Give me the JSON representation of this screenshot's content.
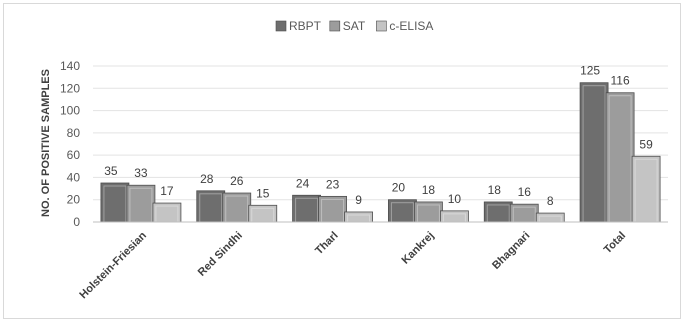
{
  "chart_data": {
    "type": "bar",
    "title": "",
    "xlabel": "",
    "ylabel": "NO. OF POSITIVE   SAMPLES",
    "ylim": [
      0,
      140
    ],
    "yticks": [
      0,
      20,
      40,
      60,
      80,
      100,
      120,
      140
    ],
    "grid": true,
    "legend_position": "top",
    "categories": [
      "Holstein-Friesian",
      "Red Sindhi",
      "Tharl",
      "Kankrej",
      "Bhagnari",
      "Total"
    ],
    "series": [
      {
        "name": "RBPT",
        "values": [
          35,
          28,
          24,
          20,
          18,
          125
        ],
        "color": "#6e6e6e"
      },
      {
        "name": "SAT",
        "values": [
          33,
          26,
          23,
          18,
          16,
          116
        ],
        "color": "#9c9c9c"
      },
      {
        "name": "c-ELISA",
        "values": [
          17,
          15,
          9,
          10,
          8,
          59
        ],
        "color": "#c4c4c4"
      }
    ]
  }
}
